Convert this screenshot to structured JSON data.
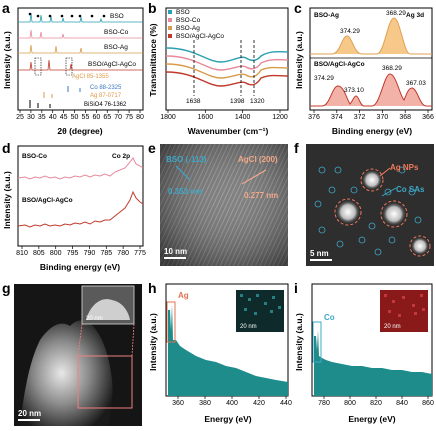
{
  "panels": {
    "a": {
      "label": "a",
      "xlabel": "2θ (degree)",
      "ylabel": "Intensity (a.u.)",
      "xticks": [
        "25",
        "30",
        "35",
        "40",
        "45",
        "50",
        "55",
        "60",
        "65",
        "70",
        "75",
        "80"
      ],
      "series": [
        {
          "name": "BSO",
          "color": "#2a9fb0"
        },
        {
          "name": "BSO-Co",
          "color": "#e7899a"
        },
        {
          "name": "BSO-Ag",
          "color": "#d79c4c"
        },
        {
          "name": "BSO/AgCl-AgCo",
          "color": "#c0392b"
        }
      ],
      "refs": [
        {
          "name": "Co 88-2325",
          "color": "#3a78c0"
        },
        {
          "name": "Ag 87-0717",
          "color": "#e09a4a"
        },
        {
          "name": "BiSiO4 76-1362",
          "color": "#000000"
        }
      ],
      "inner_text": "AgCl 85-1355"
    },
    "b": {
      "label": "b",
      "xlabel": "Wavenumber (cm⁻¹)",
      "ylabel": "Transmittance (%)",
      "xticks": [
        "1800",
        "1600",
        "1400",
        "1200"
      ],
      "series": [
        {
          "name": "BSO",
          "color": "#2a9fb0"
        },
        {
          "name": "BSO-Co",
          "color": "#e7899a"
        },
        {
          "name": "BSO-Ag",
          "color": "#d79c4c"
        },
        {
          "name": "BSO/AgCl-AgCo",
          "color": "#c0392b"
        }
      ],
      "peaks": [
        "1638",
        "1398",
        "1320"
      ]
    },
    "c": {
      "label": "c",
      "xlabel": "Binding energy (eV)",
      "ylabel": "Intensity (a.u.)",
      "title": "Ag 3d",
      "xticks": [
        "376",
        "374",
        "372",
        "370",
        "368",
        "366"
      ],
      "top_name": "BSO-Ag",
      "bottom_name": "BSO/AgCl-AgCo",
      "top_peaks": [
        "374.29",
        "368.29"
      ],
      "bottom_peaks": [
        "374.29",
        "373.10",
        "368.29",
        "367.03"
      ]
    },
    "d": {
      "label": "d",
      "xlabel": "Binding energy (eV)",
      "ylabel": "Intensity (a.u.)",
      "title": "Co 2p",
      "xticks": [
        "810",
        "805",
        "800",
        "795",
        "790",
        "785",
        "780",
        "775"
      ],
      "top_name": "BSO-Co",
      "bottom_name": "BSO/AgCl-AgCo"
    },
    "e": {
      "label": "e",
      "lattice1": "BSO (-113)",
      "d1": "0.353 nm",
      "lattice2": "AgCl (200)",
      "d2": "0.277 nm",
      "scale": "10 nm"
    },
    "f": {
      "label": "f",
      "np_label": "Ag NPs",
      "sa_label": "Co SAs",
      "scale": "5 nm"
    },
    "g": {
      "label": "g",
      "scale": "20 nm",
      "inset_scale": "20 nm"
    },
    "h": {
      "label": "h",
      "element": "Ag",
      "xlabel": "Energy (eV)",
      "ylabel": "Intensity (a.u.)",
      "xticks": [
        "360",
        "380",
        "400",
        "420",
        "440"
      ],
      "scale": "20 nm"
    },
    "i": {
      "label": "i",
      "element": "Co",
      "xlabel": "Energy (eV)",
      "ylabel": "Intensity (a.u.)",
      "xticks": [
        "780",
        "800",
        "820",
        "840",
        "860"
      ],
      "scale": "20 nm"
    }
  },
  "colors": {
    "teal": "#1f8c8c",
    "pink": "#e7899a",
    "orange": "#d79c4c",
    "red": "#c0392b"
  }
}
